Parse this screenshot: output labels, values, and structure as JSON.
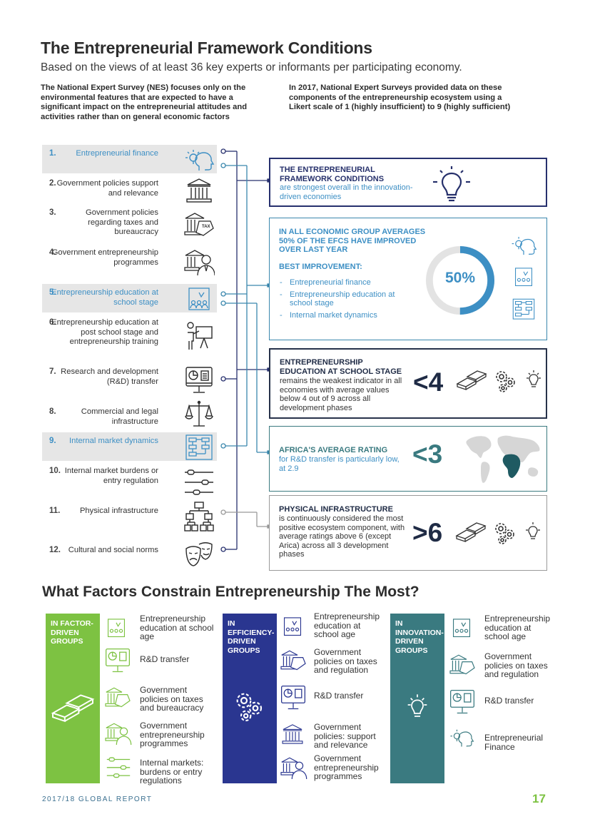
{
  "header": {
    "title": "The Entrepreneurial Framework Conditions",
    "subtitle": "Based on the views of at least 36 key experts or informants per participating economy."
  },
  "intro": {
    "left": "The National Expert Survey (NES) focuses only on the environmental features that are expected to have a significant impact on the entrepreneurial attitudes and activities rather than on general economic factors",
    "right": "In 2017, National Expert Surveys provided data on these components of the entrepreneurship ecosystem using a Likert scale of 1 (highly insufficient) to 9 (highly sufficient)"
  },
  "efc_list": [
    {
      "num": "1.",
      "label": "Entrepreneurial finance",
      "icon": "head-lightbulb-icon"
    },
    {
      "num": "2.",
      "label": "Government policies support and relevance",
      "icon": "government-building-icon"
    },
    {
      "num": "3.",
      "label": "Government policies regarding taxes and bureaucracy",
      "icon": "tax-building-icon"
    },
    {
      "num": "4.",
      "label": "Government entrepreneurship programmes",
      "icon": "government-person-icon"
    },
    {
      "num": "5.",
      "label": "Entrepreneurship education at school stage",
      "icon": "classroom-icon"
    },
    {
      "num": "6.",
      "label": "Entrepreneurship education at post school stage and entrepreneurship training",
      "icon": "presenter-icon"
    },
    {
      "num": "7.",
      "label": "Research and development (R&D) transfer",
      "icon": "monitor-chart-icon"
    },
    {
      "num": "8.",
      "label": "Commercial and legal infrastructure",
      "icon": "scales-icon"
    },
    {
      "num": "9.",
      "label": "Internal market dynamics",
      "icon": "flowchart-board-icon"
    },
    {
      "num": "10.",
      "label": "Internal market burdens or entry regulation",
      "icon": "sliders-icon"
    },
    {
      "num": "11.",
      "label": "Physical infrastructure",
      "icon": "hierarchy-icon"
    },
    {
      "num": "12.",
      "label": "Cultural and social norms",
      "icon": "theatre-masks-icon"
    }
  ],
  "boxes": {
    "strongest": {
      "heading": "THE ENTREPRENEURIAL FRAMEWORK CONDITIONS",
      "text": "are strongest overall in the innovation-driven economies"
    },
    "improved": {
      "heading": "IN ALL ECONOMIC GROUP AVERAGES 50% OF THE EFCs HAVE IMPROVED OVER LAST YEAR",
      "best_heading": "BEST IMPROVEMENT:",
      "items": [
        "Entrepreneurial finance",
        "Entrepreneurship education at school stage",
        "Internal market dynamics"
      ],
      "percent_label": "50%",
      "percent_value": 50
    },
    "school": {
      "heading": "ENTREPRENEURSHIP EDUCATION AT SCHOOL STAGE",
      "text": "remains the weakest indicator in all economies with average values below 4 out of 9 across all development phases",
      "big": "<4"
    },
    "africa": {
      "heading": "AFRICA'S AVERAGE RATING",
      "text": "for R&D transfer is particularly low, at 2.9",
      "big": "<3"
    },
    "physical": {
      "heading": "PHYSICAL INFRASTRUCTURE",
      "text": "is continuously considered the most positive ecosystem component, with average ratings above 6 (except Arica) across all 3 development phases",
      "big": ">6"
    }
  },
  "constraints": {
    "title": "What Factors Constrain Entrepreneurship The Most?",
    "groups": [
      {
        "label": "IN FACTOR-DRIVEN GROUPS",
        "color": "#7dc242",
        "items": [
          "Entrepreneurship education at school age",
          "R&D transfer",
          "Government policies on taxes and bureaucracy",
          "Government entrepreneurship programmes",
          "Internal markets: burdens or entry regulations"
        ]
      },
      {
        "label": "IN EFFICIENCY-DRIVEN GROUPS",
        "color": "#2a3690",
        "items": [
          "Entrepreneurship education at school age",
          "Government policies on taxes and regulation",
          "R&D transfer",
          "Government policies: support and relevance",
          "Government entrepreneurship programmes"
        ]
      },
      {
        "label": "IN INNOVATION-DRIVEN GROUPS",
        "color": "#3a7a80",
        "items": [
          "Entrepreneurship education at school age",
          "Government policies on taxes and regulation",
          "R&D transfer",
          "Entrepreneurial Finance"
        ]
      }
    ]
  },
  "footer": {
    "report": "2017/18 GLOBAL REPORT",
    "page": "17"
  },
  "colors": {
    "accent_blue": "#3d8fc4",
    "navy": "#26306b",
    "green": "#7dc242",
    "teal": "#3a7a80"
  }
}
